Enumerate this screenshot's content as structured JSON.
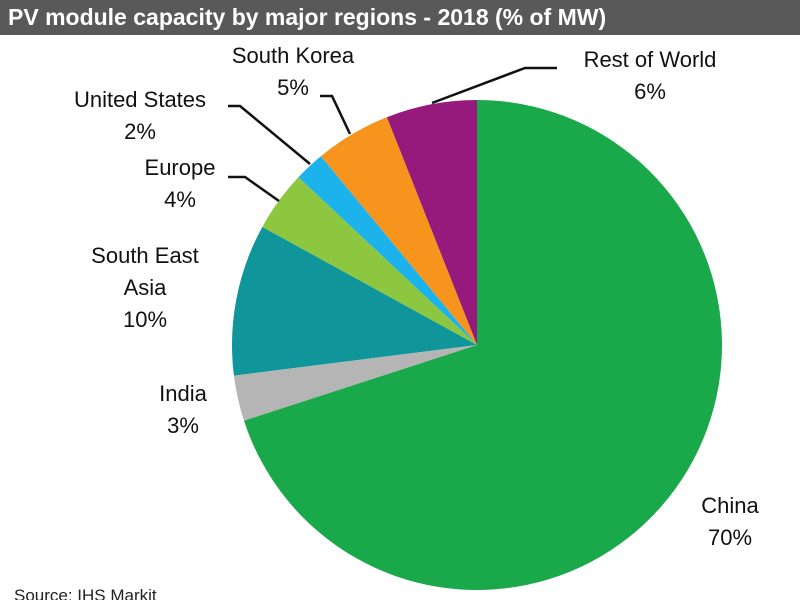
{
  "chart_data": {
    "type": "pie",
    "title": "PV module capacity by major regions - 2018 (% of MW)",
    "categories": [
      "China",
      "India",
      "South East Asia",
      "Europe",
      "United States",
      "South Korea",
      "Rest of World"
    ],
    "values": [
      70,
      3,
      10,
      4,
      2,
      5,
      6
    ],
    "value_labels": [
      "70%",
      "3%",
      "10%",
      "4%",
      "2%",
      "5%",
      "6%"
    ],
    "colors": [
      "#19a84a",
      "#b5b5b5",
      "#10969a",
      "#8dc63f",
      "#1cb3ec",
      "#f7941d",
      "#961a7c"
    ],
    "source": "Source: IHS Markit"
  }
}
